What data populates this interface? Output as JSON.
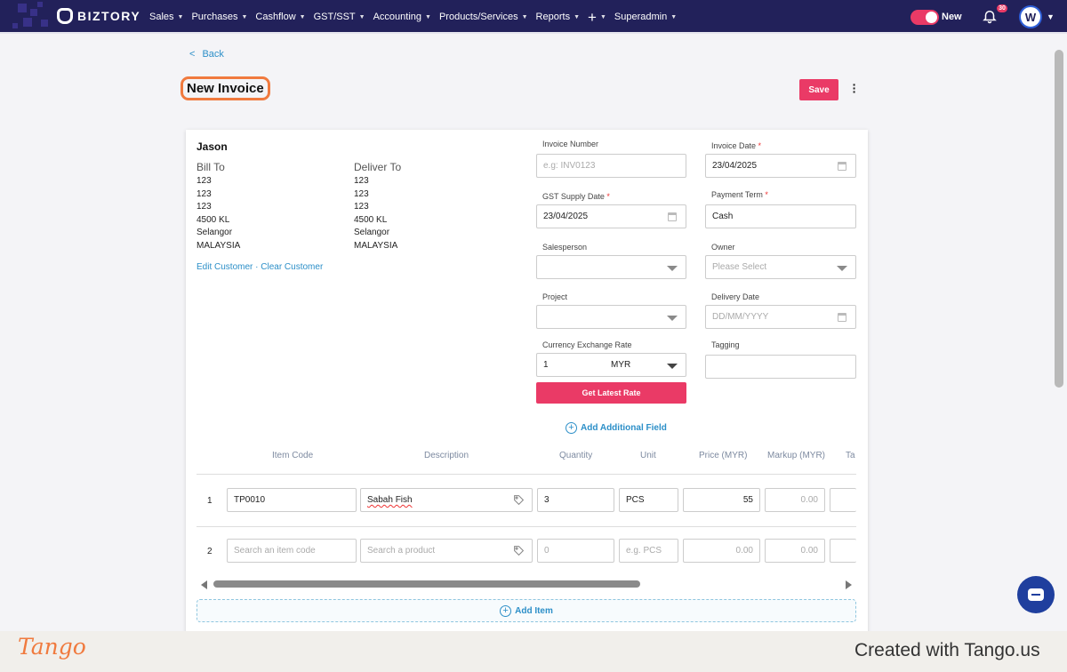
{
  "nav": {
    "brand": "BIZTORY",
    "menu": [
      {
        "label": "Sales"
      },
      {
        "label": "Purchases"
      },
      {
        "label": "Cashflow"
      },
      {
        "label": "GST/SST"
      },
      {
        "label": "Accounting"
      },
      {
        "label": "Products/Services"
      },
      {
        "label": "Reports"
      },
      {
        "label": "+"
      },
      {
        "label": "Superadmin"
      }
    ],
    "toggle_label": "New",
    "notification_count": "30",
    "avatar_initial": "W"
  },
  "page": {
    "back_label": "Back",
    "title": "New Invoice",
    "save_label": "Save"
  },
  "customer": {
    "name": "Jason",
    "bill_to": {
      "heading": "Bill To",
      "lines": [
        "123",
        "123",
        "123",
        "4500 KL",
        "Selangor",
        "MALAYSIA"
      ]
    },
    "deliver_to": {
      "heading": "Deliver To",
      "lines": [
        "123",
        "123",
        "123",
        "4500 KL",
        "Selangor",
        "MALAYSIA"
      ]
    },
    "edit_link": "Edit Customer",
    "separator": " · ",
    "clear_link": "Clear Customer"
  },
  "form": {
    "invoice_number": {
      "label": "Invoice Number",
      "placeholder": "e.g: INV0123"
    },
    "invoice_date": {
      "label": "Invoice Date",
      "value": "23/04/2025"
    },
    "gst_supply_date": {
      "label": "GST Supply Date",
      "value": "23/04/2025"
    },
    "payment_term": {
      "label": "Payment Term",
      "value": "Cash"
    },
    "salesperson": {
      "label": "Salesperson",
      "value": ""
    },
    "owner": {
      "label": "Owner",
      "placeholder": "Please Select"
    },
    "project": {
      "label": "Project",
      "value": ""
    },
    "delivery_date": {
      "label": "Delivery Date",
      "placeholder": "DD/MM/YYYY"
    },
    "currency_rate": {
      "label": "Currency Exchange Rate",
      "value": "1",
      "currency": "MYR"
    },
    "tagging": {
      "label": "Tagging",
      "value": ""
    },
    "required_mark": "*",
    "get_rate_label": "Get Latest Rate",
    "add_field_label": "Add Additional Field"
  },
  "items": {
    "columns": [
      "Item Code",
      "Description",
      "Quantity",
      "Unit",
      "Price (MYR)",
      "Markup (MYR)",
      "Ta"
    ],
    "rows": [
      {
        "num": "1",
        "item_code": "TP0010",
        "description": "Sabah Fish",
        "quantity": "3",
        "unit": "PCS",
        "price": "55",
        "markup": "0.00"
      },
      {
        "num": "2",
        "item_code_placeholder": "Search an item code",
        "description_placeholder": "Search a product",
        "quantity_placeholder": "0",
        "unit_placeholder": "e.g. PCS",
        "price_placeholder": "0.00",
        "markup_placeholder": "0.00"
      }
    ],
    "add_item_label": "Add Item"
  },
  "footer": {
    "logo_text": "Tango",
    "credit": "Created with Tango.us"
  }
}
